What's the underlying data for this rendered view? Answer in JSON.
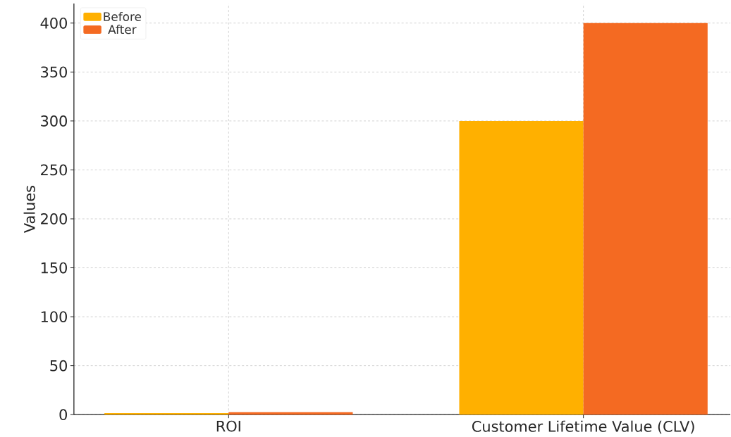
{
  "chart_data": {
    "type": "bar",
    "ylabel": "Values",
    "categories": [
      "ROI",
      "Customer Lifetime Value (CLV)"
    ],
    "series": [
      {
        "name": "Before",
        "color": "#ffb000",
        "values": [
          1.5,
          300
        ]
      },
      {
        "name": "After",
        "color": "#f46a22",
        "values": [
          2.5,
          400
        ]
      }
    ],
    "ylim": [
      0,
      420
    ],
    "yticks": [
      0,
      50,
      100,
      150,
      200,
      250,
      300,
      350,
      400
    ],
    "grid": true,
    "legend": "top left"
  }
}
